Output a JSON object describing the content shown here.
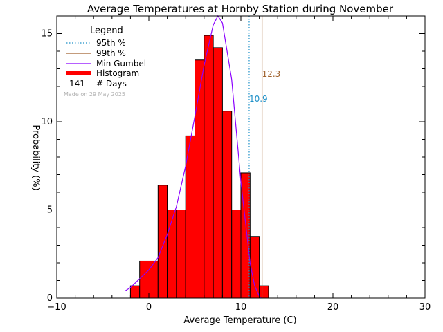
{
  "chart_data": {
    "type": "bar",
    "title": "Average Temperatures at Hornby Station during November",
    "xlabel": "Average Temperature (C)",
    "ylabel": "Probability (%)",
    "xlim": [
      -10,
      30
    ],
    "ylim": [
      0,
      16
    ],
    "x_ticks": [
      "−10",
      "0",
      "10",
      "20",
      "30"
    ],
    "y_ticks": [
      "0",
      "5",
      "10",
      "15"
    ],
    "histogram": {
      "bin_edges": [
        -2,
        -1,
        1,
        2,
        3,
        4,
        5,
        6,
        7,
        8,
        9,
        10,
        11,
        12,
        13
      ],
      "values": [
        0.7,
        2.1,
        6.4,
        5.0,
        5.0,
        9.2,
        13.5,
        14.9,
        14.2,
        10.6,
        5.0,
        7.1,
        3.5,
        0.7
      ]
    },
    "min_gumbel": {
      "x": [
        -2.6,
        -2,
        -1,
        0,
        1,
        2,
        3,
        4,
        5,
        6,
        7,
        7.5,
        8,
        9,
        10,
        11,
        11.5,
        12.0,
        12.2
      ],
      "y": [
        0.4,
        0.6,
        1.1,
        1.6,
        2.3,
        3.6,
        5.2,
        7.5,
        10.3,
        13.2,
        15.5,
        16.0,
        15.6,
        12.4,
        6.6,
        2.0,
        0.7,
        0.1,
        0.0
      ]
    },
    "percentile_95": 10.9,
    "percentile_99": 12.3,
    "legend": {
      "title": "Legend",
      "entries": [
        "95th %",
        "99th %",
        "Min Gumbel",
        "Histogram",
        "# Days"
      ],
      "days_count": "141",
      "made_on": "Made on 29 May 2025"
    },
    "colors": {
      "histogram": "#ff0000",
      "gumbel": "#8b00ff",
      "p95": "#1e90c8",
      "p99": "#a0622d",
      "made_on": "#b0b0b0"
    }
  }
}
